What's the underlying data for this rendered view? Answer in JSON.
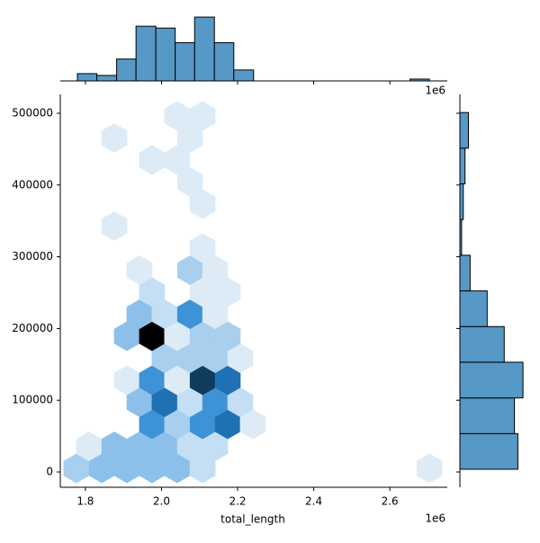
{
  "chart_data": {
    "type": "hexbin",
    "x_label": "total_length",
    "x_offset_label": "1e6",
    "xlim": [
      1.734,
      2.751
    ],
    "ylim": [
      -21300,
      526300
    ],
    "xticks": [
      1.8,
      {
        "value": 2,
        "label": "2.0"
      },
      2.2,
      2.4,
      2.6
    ],
    "yticks": [
      0,
      100000,
      200000,
      300000,
      400000,
      500000
    ],
    "cmap": [
      "#ddebf7",
      "#c4def4",
      "#a9cfee",
      "#8cc0ea",
      "#3e92d6",
      "#2070b4",
      "#0f3b5c",
      "#000000"
    ],
    "hexbin": {
      "x": [
        1.776,
        1.843,
        1.909,
        1.975,
        2.041,
        2.108,
        2.704,
        1.809,
        1.876,
        1.942,
        2.008,
        2.075,
        2.141,
        1.975,
        2.041,
        2.108,
        2.174,
        2.24,
        1.942,
        2.008,
        2.075,
        2.141,
        2.207,
        1.909,
        1.975,
        2.041,
        2.108,
        2.174,
        2.008,
        2.075,
        2.141,
        2.207,
        1.909,
        1.975,
        2.041,
        2.108,
        2.174,
        1.942,
        2.008,
        2.075,
        2.141,
        1.975,
        2.108,
        2.174,
        1.942,
        2.075,
        2.141,
        2.108,
        1.876,
        2.108,
        2.075,
        1.975,
        2.041,
        1.876,
        2.075,
        2.041,
        2.108
      ],
      "y": [
        5000,
        5000,
        5000,
        5000,
        5000,
        5000,
        5000,
        35700,
        35700,
        35700,
        35700,
        35700,
        35700,
        66400,
        66400,
        66400,
        66400,
        66400,
        97100,
        97100,
        97100,
        97100,
        97100,
        127800,
        127800,
        127800,
        127800,
        127800,
        158500,
        158500,
        158500,
        158500,
        189200,
        189200,
        189200,
        189200,
        189200,
        219900,
        219900,
        219900,
        219900,
        250600,
        250600,
        250600,
        281300,
        281300,
        281300,
        312000,
        342700,
        373400,
        404100,
        434800,
        434800,
        465500,
        465500,
        496200,
        496200
      ],
      "counts": [
        3,
        4,
        4,
        4,
        4,
        2,
        1,
        1,
        4,
        4,
        4,
        2,
        2,
        5,
        3,
        5,
        6,
        1,
        4,
        6,
        2,
        5,
        2,
        1,
        5,
        1,
        7,
        6,
        3,
        3,
        3,
        1,
        4,
        8,
        1,
        3,
        3,
        4,
        2,
        5,
        1,
        2,
        1,
        1,
        1,
        3,
        1,
        1,
        1,
        1,
        1,
        1,
        1,
        1,
        1,
        1,
        1
      ]
    },
    "hist_color": "#5698c6",
    "x_hist": {
      "bins": [
        1.779,
        1.83,
        1.882,
        1.933,
        1.985,
        2.036,
        2.087,
        2.139,
        2.19,
        2.242,
        2.293,
        2.344,
        2.396,
        2.447,
        2.499,
        2.55,
        2.601,
        2.653,
        2.704
      ],
      "counts": [
        4,
        3,
        12,
        30,
        29,
        21,
        35,
        21,
        6,
        0,
        0,
        0,
        0,
        0,
        0,
        0,
        0,
        1
      ],
      "ylim": [
        0,
        37
      ]
    },
    "y_hist": {
      "bins": [
        3800,
        53500,
        103200,
        153000,
        202700,
        252400,
        302100,
        351900,
        401600,
        451300,
        501000
      ],
      "counts": [
        34,
        32,
        37,
        26,
        16,
        6,
        1,
        2,
        3,
        5
      ],
      "xlim": [
        0,
        38
      ]
    }
  }
}
